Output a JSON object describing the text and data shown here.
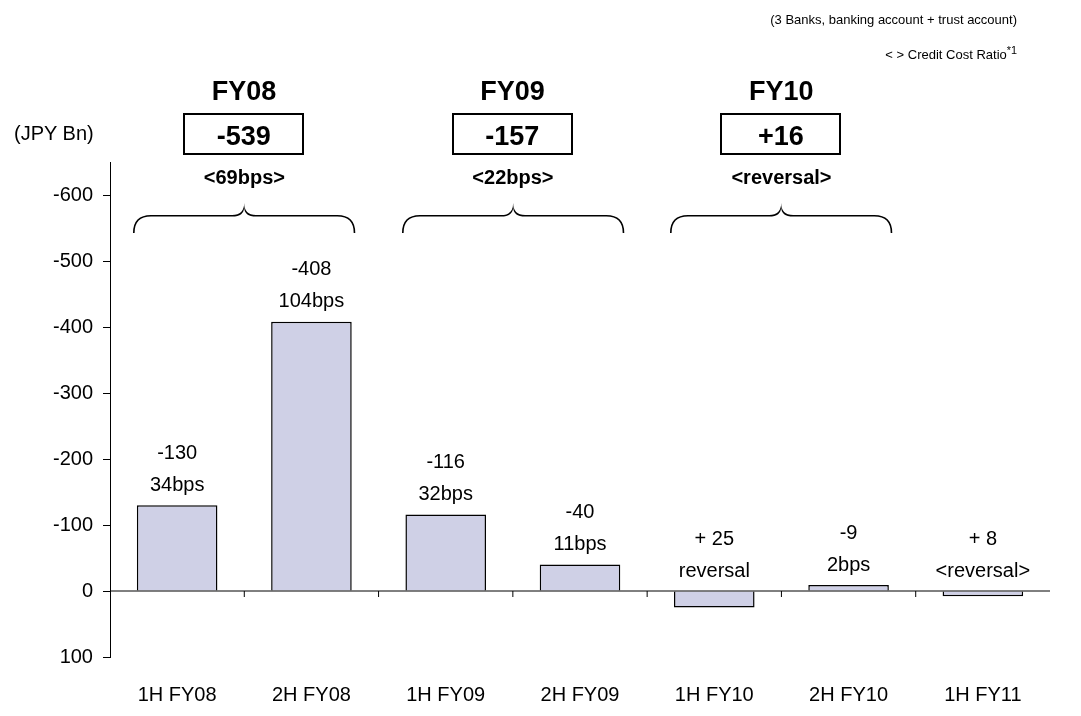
{
  "chart_data": {
    "type": "bar",
    "ylabel": "(JPY Bn)",
    "categories": [
      "1H FY08",
      "2H FY08",
      "1H FY09",
      "2H FY09",
      "1H FY10",
      "2H FY10",
      "1H FY11"
    ],
    "values": [
      -130,
      -408,
      -116,
      -40,
      25,
      -9,
      8
    ],
    "color": "#cfd0e6",
    "value_labels": [
      "-130",
      "-408",
      "-116",
      "-40",
      "+ 25",
      "-9",
      "+ 8"
    ],
    "ylim": [
      100,
      -650
    ],
    "yticks": [
      100,
      0,
      -100,
      -200,
      -300,
      -400,
      -500,
      -600
    ],
    "legend": false,
    "annotations": [
      "(3 Banks, banking account + trust account)",
      "< > Credit Cost Ratio$^{*1}$",
      "FY08",
      "-539",
      "<69bps>",
      "FY09",
      "-157",
      "<22bps>",
      "FY10",
      "+16",
      "<reversal>",
      {
        "text": "34bps",
        "x": "1H FY08",
        "y": -130
      },
      {
        "text": "104bps",
        "x": "2H FY08",
        "y": -408
      },
      {
        "text": "32bps",
        "x": "1H FY09",
        "y": -116
      },
      {
        "text": "11bps",
        "x": "2H FY09",
        "y": -40
      },
      {
        "text": "reversal",
        "x": "1H FY10",
        "y": 25
      },
      {
        "text": "2bps",
        "x": "2H FY10",
        "y": -9
      },
      {
        "text": "<reversal>",
        "x": "1H FY11",
        "y": 8
      }
    ]
  }
}
